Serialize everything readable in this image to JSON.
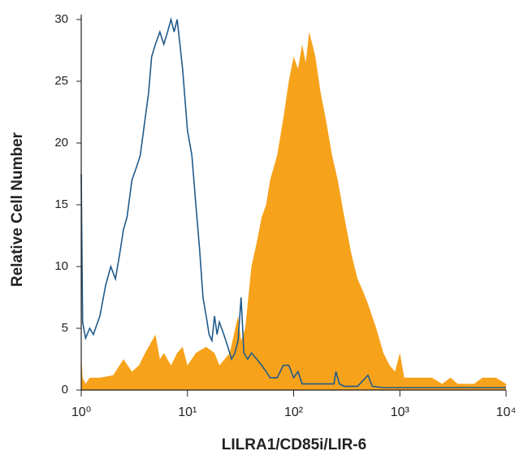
{
  "chart_data": {
    "type": "histogram-overlay",
    "xlabel": "LILRA1/CD85i/LIR-6",
    "ylabel": "Relative Cell Number",
    "xscale": "log",
    "xlim": [
      1,
      10000
    ],
    "xticks": [
      {
        "value": 1,
        "label": "10⁰"
      },
      {
        "value": 10,
        "label": "10¹"
      },
      {
        "value": 100,
        "label": "10²"
      },
      {
        "value": 1000,
        "label": "10³"
      },
      {
        "value": 10000,
        "label": "10⁴"
      }
    ],
    "ylim": [
      0,
      30
    ],
    "yticks": [
      0,
      5,
      10,
      15,
      20,
      25,
      30
    ],
    "series": [
      {
        "style": "filled",
        "color": "#f7a21b",
        "x": [
          1,
          1.03,
          1.1,
          1.2,
          1.5,
          2,
          2.5,
          3,
          3.5,
          4,
          5,
          5.5,
          6,
          7,
          8,
          9,
          10,
          12,
          15,
          18,
          20,
          25,
          30,
          32,
          35,
          40,
          45,
          50,
          55,
          60,
          70,
          80,
          90,
          100,
          110,
          120,
          130,
          140,
          150,
          160,
          180,
          200,
          230,
          260,
          300,
          350,
          400,
          450,
          500,
          600,
          700,
          800,
          900,
          1000,
          1100,
          1300,
          1500,
          2000,
          2500,
          3000,
          3500,
          4000,
          5000,
          6000,
          8000,
          10000
        ],
        "values": [
          3,
          1,
          0.5,
          1,
          1,
          1.2,
          2.5,
          1.5,
          2,
          3,
          4.5,
          2.5,
          3,
          2,
          3,
          3.5,
          2,
          3,
          3.5,
          3,
          2,
          3,
          6,
          4,
          5,
          10,
          12,
          14,
          15,
          17,
          19,
          22,
          25,
          27,
          26,
          28,
          26.5,
          29,
          28,
          27,
          24,
          22,
          19,
          17,
          14,
          11,
          9,
          8,
          7,
          5,
          3,
          2,
          1.5,
          3,
          1,
          1,
          1,
          1,
          0.5,
          1,
          0.5,
          0.5,
          0.5,
          1,
          1,
          0.5
        ]
      },
      {
        "style": "outline",
        "color": "#1f5b8c",
        "x": [
          1,
          1.03,
          1.1,
          1.2,
          1.3,
          1.5,
          1.7,
          1.9,
          2.1,
          2.3,
          2.5,
          2.7,
          3,
          3.3,
          3.6,
          4,
          4.3,
          4.6,
          5,
          5.5,
          6,
          6.5,
          7,
          7.5,
          8,
          8.5,
          9,
          10,
          11,
          12,
          13,
          14,
          15,
          16,
          17,
          18,
          19,
          20,
          22,
          24,
          26,
          28,
          30,
          32,
          34,
          37,
          40,
          45,
          50,
          55,
          60,
          70,
          80,
          90,
          100,
          110,
          120,
          140,
          160,
          180,
          200,
          240,
          250,
          270,
          300,
          400,
          500,
          550,
          700,
          1000,
          3000,
          10000
        ],
        "values": [
          17.5,
          5.5,
          4.2,
          5,
          4.5,
          6,
          8.5,
          10,
          9,
          11,
          13,
          14,
          17,
          18,
          19,
          22,
          24,
          27,
          28,
          29,
          28,
          29,
          30,
          29,
          30,
          28,
          26,
          21,
          19,
          15,
          11.5,
          7.5,
          6,
          4.5,
          4,
          6,
          4.5,
          5.5,
          4.5,
          3.5,
          2.5,
          3,
          4,
          7.5,
          3,
          2.5,
          3,
          2.5,
          2,
          1.5,
          1,
          1,
          2,
          2,
          1,
          1.5,
          0.5,
          0.5,
          0.5,
          0.5,
          0.5,
          0.5,
          1.5,
          0.5,
          0.3,
          0.3,
          1.2,
          0.3,
          0.2,
          0.2,
          0.2,
          0.2
        ]
      }
    ]
  }
}
